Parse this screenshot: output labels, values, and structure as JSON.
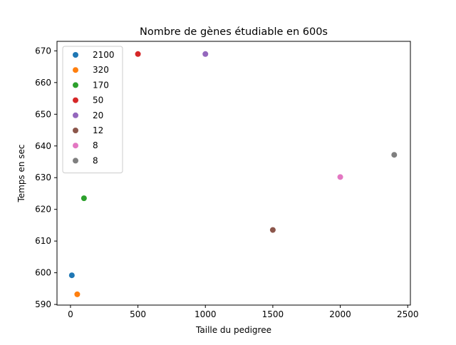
{
  "chart_data": {
    "type": "scatter",
    "title": "Nombre de gènes étudiable en 600s",
    "xlabel": "Taille du pedigree",
    "ylabel": "Temps en sec",
    "xlim": [
      -100,
      2520
    ],
    "ylim": [
      589.8,
      673.0
    ],
    "xticks": [
      0,
      500,
      1000,
      1500,
      2000,
      2500
    ],
    "yticks": [
      590,
      600,
      610,
      620,
      630,
      640,
      650,
      660,
      670
    ],
    "grid": false,
    "legend_position": "top-left",
    "series": [
      {
        "name": "2100",
        "color": "#1f77b4",
        "points": [
          {
            "x": 10,
            "y": 599.2
          }
        ]
      },
      {
        "name": "320",
        "color": "#ff7f0e",
        "points": [
          {
            "x": 50,
            "y": 593.2
          }
        ]
      },
      {
        "name": "170",
        "color": "#2ca02c",
        "points": [
          {
            "x": 100,
            "y": 623.5
          }
        ]
      },
      {
        "name": "50",
        "color": "#d62728",
        "points": [
          {
            "x": 500,
            "y": 669.0
          }
        ]
      },
      {
        "name": "20",
        "color": "#9467bd",
        "points": [
          {
            "x": 1000,
            "y": 669.0
          }
        ]
      },
      {
        "name": "12",
        "color": "#8c564b",
        "points": [
          {
            "x": 1500,
            "y": 613.5
          }
        ]
      },
      {
        "name": "8",
        "color": "#e377c2",
        "points": [
          {
            "x": 2000,
            "y": 630.2
          }
        ]
      },
      {
        "name": "8",
        "color": "#7f7f7f",
        "points": [
          {
            "x": 2400,
            "y": 637.2
          }
        ]
      }
    ]
  }
}
